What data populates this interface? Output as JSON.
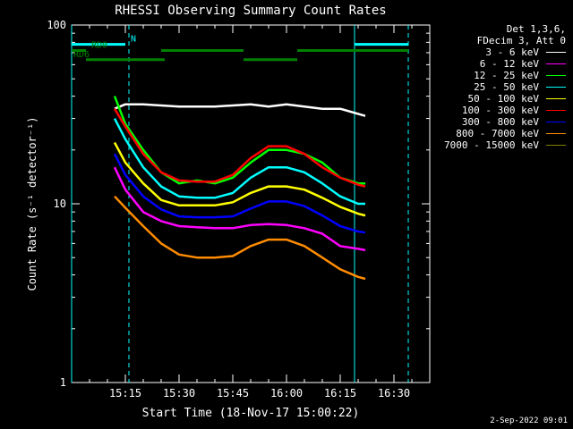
{
  "chart_data": {
    "type": "line",
    "title": "RHESSI Observing Summary Count Rates",
    "xlabel": "Start Time (18-Nov-17 15:00:22)",
    "ylabel": "Count Rate (s⁻¹ detector⁻¹)",
    "yscale": "log",
    "ylim": [
      1,
      100
    ],
    "xlim": [
      0,
      100
    ],
    "x_unit": "minutes after 15:00:22",
    "y_ticks": [
      "1",
      "10",
      "100"
    ],
    "x_ticks": [
      {
        "label": "15:15",
        "minute": 15
      },
      {
        "label": "15:30",
        "minute": 30
      },
      {
        "label": "15:45",
        "minute": 45
      },
      {
        "label": "16:00",
        "minute": 60
      },
      {
        "label": "16:15",
        "minute": 75
      },
      {
        "label": "16:30",
        "minute": 90
      }
    ],
    "legend_header": [
      "Det 1,3,6,",
      "FDecim 3, Att 0"
    ],
    "legend_position": "right",
    "series": [
      {
        "name": "3 - 6 keV",
        "color": "#ffffff",
        "x": [
          12,
          15,
          20,
          30,
          40,
          50,
          55,
          60,
          65,
          70,
          75,
          82
        ],
        "y": [
          34,
          36,
          36,
          35,
          35,
          36,
          35,
          36,
          35,
          34,
          34,
          31
        ]
      },
      {
        "name": "6 - 12 keV",
        "color": "#ff00ff",
        "x": [
          12,
          15,
          20,
          25,
          30,
          35,
          40,
          45,
          50,
          55,
          60,
          65,
          70,
          75,
          80,
          82
        ],
        "y": [
          16,
          12,
          9,
          8,
          7.5,
          7.4,
          7.3,
          7.3,
          7.6,
          7.7,
          7.6,
          7.3,
          6.8,
          5.8,
          5.6,
          5.5
        ]
      },
      {
        "name": "12 - 25 keV",
        "color": "#00ff00",
        "x": [
          12,
          15,
          20,
          25,
          30,
          35,
          40,
          45,
          50,
          55,
          60,
          65,
          70,
          75,
          80,
          82
        ],
        "y": [
          40,
          28,
          20,
          15,
          13,
          13.5,
          13,
          14,
          17,
          20,
          20,
          19,
          17,
          14,
          13,
          13
        ]
      },
      {
        "name": "25 - 50 keV",
        "color": "#00ffff",
        "x": [
          12,
          15,
          20,
          25,
          30,
          35,
          40,
          45,
          50,
          55,
          60,
          65,
          70,
          75,
          80,
          82
        ],
        "y": [
          30,
          23,
          16,
          12.5,
          11,
          10.8,
          10.8,
          11.5,
          14,
          16,
          16,
          15,
          13,
          11,
          10,
          10
        ]
      },
      {
        "name": "50 - 100 keV",
        "color": "#ffff00",
        "x": [
          12,
          15,
          20,
          25,
          30,
          35,
          40,
          45,
          50,
          55,
          60,
          65,
          70,
          75,
          80,
          82
        ],
        "y": [
          22,
          17,
          13,
          10.5,
          9.8,
          9.8,
          9.8,
          10.2,
          11.5,
          12.5,
          12.5,
          12,
          10.8,
          9.6,
          8.8,
          8.6
        ]
      },
      {
        "name": "100 - 300 keV",
        "color": "#ff0000",
        "x": [
          12,
          15,
          20,
          25,
          30,
          35,
          40,
          45,
          50,
          55,
          60,
          65,
          70,
          75,
          80,
          82
        ],
        "y": [
          34,
          27,
          19,
          15,
          13.5,
          13.3,
          13.3,
          14.5,
          18,
          21,
          21,
          19,
          16,
          14,
          12.8,
          12.5
        ]
      },
      {
        "name": "300 - 800 keV",
        "color": "#0000ff",
        "x": [
          12,
          15,
          20,
          25,
          30,
          35,
          40,
          45,
          50,
          55,
          60,
          65,
          70,
          75,
          80,
          82
        ],
        "y": [
          19,
          14.5,
          11,
          9.3,
          8.5,
          8.4,
          8.4,
          8.5,
          9.4,
          10.3,
          10.3,
          9.7,
          8.6,
          7.5,
          7,
          6.9
        ]
      },
      {
        "name": "800 - 7000 keV",
        "color": "#ff8c00",
        "x": [
          12,
          15,
          20,
          25,
          30,
          35,
          40,
          45,
          50,
          55,
          60,
          65,
          70,
          75,
          80,
          82
        ],
        "y": [
          11,
          9.5,
          7.5,
          6,
          5.2,
          5,
          5,
          5.1,
          5.8,
          6.3,
          6.3,
          5.8,
          5,
          4.3,
          3.9,
          3.8
        ]
      },
      {
        "name": "7000 - 15000 keV",
        "color": "#808000",
        "x": [],
        "y": []
      }
    ],
    "annotations": [
      {
        "label": "N",
        "color": "#00ffff",
        "bars": [
          [
            0,
            15
          ],
          [
            79,
            94
          ]
        ],
        "level": 78
      },
      {
        "label": "RD0",
        "color": "#008000",
        "bars": [
          [
            0,
            4
          ],
          [
            25,
            48
          ],
          [
            63,
            94
          ]
        ],
        "level": 72
      },
      {
        "label": "RD6",
        "color": "#008000",
        "bars": [
          [
            4,
            26
          ],
          [
            48,
            63
          ]
        ],
        "level": 64
      }
    ],
    "vlines": [
      {
        "minute": 0,
        "style": "solid",
        "color": "#00ffff"
      },
      {
        "minute": 16,
        "style": "dashed",
        "color": "#00ffff"
      },
      {
        "minute": 79,
        "style": "solid",
        "color": "#00ffff"
      },
      {
        "minute": 94,
        "style": "dashed",
        "color": "#00ffff"
      }
    ]
  },
  "timestamp": "2-Sep-2022 09:01"
}
